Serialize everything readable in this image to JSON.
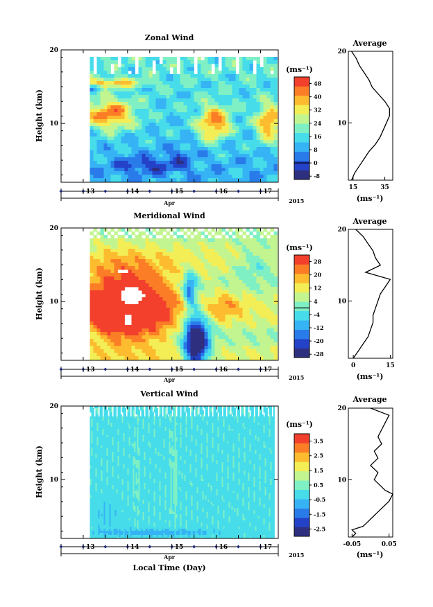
{
  "xlabel_main": "Local Time (Day)",
  "colors": {
    "scale": [
      "#2e2f7f",
      "#2442c8",
      "#2a7bea",
      "#36b3f4",
      "#46dcea",
      "#7ff0c4",
      "#c2f590",
      "#f3ee56",
      "#fdbc2f",
      "#fb7d26",
      "#f2402d"
    ],
    "blank": "#ffffff"
  },
  "chart_data": [
    {
      "type": "heatmap",
      "name": "zonal",
      "title": "Zonal Wind",
      "ylabel": "Height (km)",
      "ylim": [
        2,
        20
      ],
      "yticks": [
        10,
        20
      ],
      "xlim": [
        12.5,
        17.4
      ],
      "data_x_range": [
        13.15,
        17.3
      ],
      "xticks": [
        13,
        14,
        15,
        16,
        17
      ],
      "xlabel": "Apr",
      "year_label": "2015",
      "colorbar": {
        "unit": "(ms⁻¹)",
        "range": [
          -10,
          52
        ],
        "ticks": [
          -8,
          0,
          8,
          16,
          24,
          32,
          40,
          48
        ],
        "tick_labels": [
          "-8",
          "0",
          "8",
          "16",
          "24",
          "32",
          "40",
          "48"
        ]
      },
      "average_profile": {
        "title": "Average",
        "xlim": [
          12,
          40
        ],
        "xticks": [
          15,
          35
        ],
        "xunit": "(ms⁻¹)",
        "heights": [
          2,
          3,
          4,
          5,
          6,
          7,
          8,
          9,
          10,
          11,
          12,
          13,
          14,
          15,
          16,
          17,
          18,
          19,
          20
        ],
        "values": [
          14,
          16,
          19,
          22,
          25,
          29,
          32,
          34,
          36,
          38,
          38,
          35,
          31,
          27,
          25,
          22,
          19,
          17,
          14
        ]
      }
    },
    {
      "type": "heatmap",
      "name": "meridional",
      "title": "Meridional Wind",
      "ylabel": "Height (km)",
      "ylim": [
        2,
        20
      ],
      "yticks": [
        10,
        20
      ],
      "xlim": [
        12.5,
        17.4
      ],
      "data_x_range": [
        13.15,
        17.3
      ],
      "xticks": [
        13,
        14,
        15,
        16,
        17
      ],
      "xlabel": "Apr",
      "year_label": "2015",
      "colorbar": {
        "unit": "(ms⁻¹)",
        "range": [
          -30,
          32
        ],
        "ticks": [
          -28,
          -20,
          -12,
          -4,
          4,
          12,
          20,
          28
        ],
        "tick_labels": [
          "-28",
          "-20",
          "-12",
          "-4",
          "4",
          "12",
          "20",
          "28"
        ]
      },
      "average_profile": {
        "title": "Average",
        "xlim": [
          -2,
          16
        ],
        "xticks": [
          0,
          15
        ],
        "xunit": "(ms⁻¹)",
        "heights": [
          2,
          3,
          4,
          5,
          6,
          7,
          8,
          9,
          10,
          11,
          12,
          13,
          14,
          15,
          16,
          17,
          18,
          19,
          20
        ],
        "values": [
          0,
          2,
          4,
          6,
          7,
          8,
          8,
          9,
          10,
          11,
          13,
          15,
          5,
          11,
          9,
          8,
          6,
          4,
          1
        ]
      }
    },
    {
      "type": "heatmap",
      "name": "vertical",
      "title": "Vertical Wind",
      "ylabel": "Height (km)",
      "ylim": [
        2,
        20
      ],
      "yticks": [
        10,
        20
      ],
      "xlim": [
        12.5,
        17.4
      ],
      "data_x_range": [
        13.15,
        17.3
      ],
      "xticks": [
        13,
        14,
        15,
        16,
        17
      ],
      "xlabel": "Apr",
      "year_label": "2015",
      "colorbar": {
        "unit": "(ms⁻¹)",
        "range": [
          -3,
          4
        ],
        "ticks": [
          -2.5,
          -1.5,
          -0.5,
          0.5,
          1.5,
          2.5,
          3.5
        ],
        "tick_labels": [
          "-2.5",
          "-1.5",
          "-0.5",
          "0.5",
          "1.5",
          "2.5",
          "3.5"
        ]
      },
      "average_profile": {
        "title": "Average",
        "xlim": [
          -0.06,
          0.06
        ],
        "xticks": [
          -0.05,
          0.05
        ],
        "xunit": "(ms⁻¹)",
        "heights": [
          2,
          2.5,
          3,
          3.5,
          4,
          5,
          6,
          7,
          8,
          8.5,
          9,
          10,
          11,
          12,
          13,
          14,
          15,
          16,
          17,
          18,
          19,
          20
        ],
        "values": [
          -0.05,
          -0.04,
          -0.05,
          -0.02,
          -0.01,
          0.01,
          0.03,
          0.05,
          0.06,
          0.04,
          0.03,
          0.01,
          0.02,
          0.0,
          0.02,
          0.01,
          0.03,
          0.02,
          0.03,
          0.04,
          0.05,
          0.0
        ]
      }
    }
  ]
}
